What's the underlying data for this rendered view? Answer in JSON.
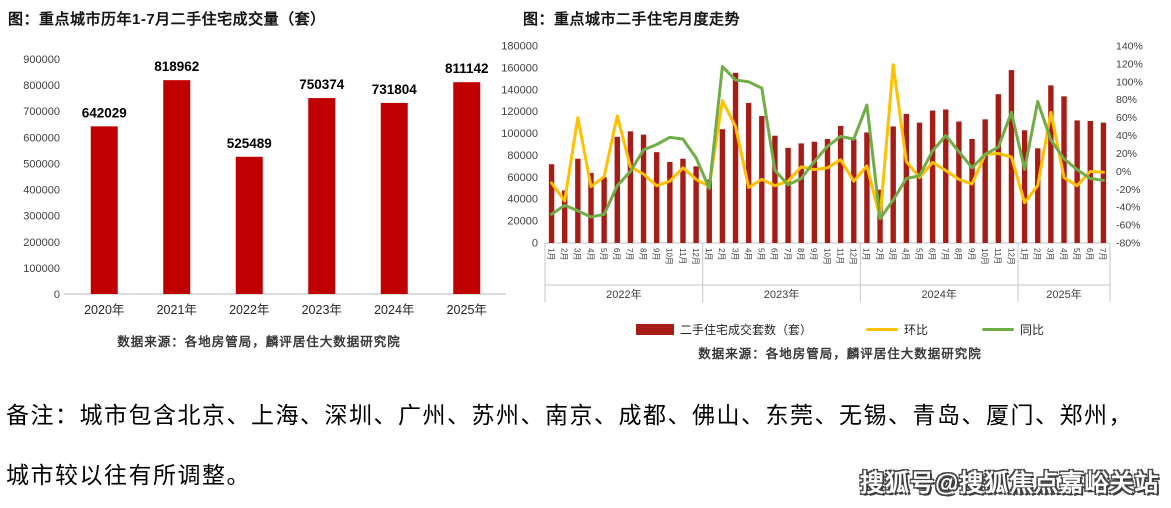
{
  "chart_data": [
    {
      "type": "bar",
      "title": "图：重点城市历年1-7月二手住宅成交量（套）",
      "source": "数据来源：各地房管局，麟评居住大数据研究院",
      "categories": [
        "2020年",
        "2021年",
        "2022年",
        "2023年",
        "2024年",
        "2025年"
      ],
      "values": [
        642029,
        818962,
        525489,
        750374,
        731804,
        811142
      ],
      "data_labels": [
        642029,
        818962,
        525489,
        750374,
        731804,
        811142
      ],
      "bar_color": "#c00000",
      "xlabel": "",
      "ylabel": "",
      "ylim": [
        0,
        900000
      ],
      "ytick_step": 100000,
      "grid": false,
      "legend_position": "none"
    },
    {
      "type": "bar+line-dual-axis",
      "title": "图：重点城市二手住宅月度走势",
      "source": "数据来源：各地房管局，麟评居住大数据研究院",
      "month_labels": [
        "1月",
        "2月",
        "3月",
        "4月",
        "5月",
        "6月",
        "7月",
        "8月",
        "9月",
        "10月",
        "11月",
        "12月",
        "1月",
        "2月",
        "3月",
        "4月",
        "5月",
        "6月",
        "7月",
        "8月",
        "9月",
        "10月",
        "11月",
        "12月",
        "1月",
        "2月",
        "3月",
        "4月",
        "5月",
        "6月",
        "7月",
        "8月",
        "9月",
        "10月",
        "11月",
        "12月",
        "1月",
        "2月",
        "3月",
        "4月",
        "5月",
        "6月",
        "7月"
      ],
      "year_groups": [
        {
          "label": "2022年",
          "count": 12
        },
        {
          "label": "2023年",
          "count": 12
        },
        {
          "label": "2024年",
          "count": 12
        },
        {
          "label": "2025年",
          "count": 7
        }
      ],
      "left_axis": {
        "min": 0,
        "max": 180000,
        "step": 20000
      },
      "right_axis": {
        "min": -80,
        "max": 140,
        "step": 20,
        "suffix": "%"
      },
      "grid": false,
      "legend_position": "bottom",
      "series": [
        {
          "name": "二手住宅成交套数（套）",
          "type": "bar",
          "axis": "left",
          "color": "#a61d17",
          "values": [
            72000,
            48000,
            77000,
            64000,
            60000,
            97000,
            102000,
            99000,
            83000,
            74000,
            77000,
            70000,
            58000,
            104000,
            155500,
            128000,
            116000,
            98000,
            87000,
            91000,
            92500,
            95000,
            107000,
            95000,
            101000,
            48700,
            106500,
            118000,
            110000,
            121000,
            122000,
            111000,
            95000,
            113000,
            136000,
            158000,
            103000,
            86500,
            144000,
            134000,
            112000,
            111500,
            110000
          ]
        },
        {
          "name": "环比",
          "type": "line",
          "axis": "right",
          "color": "#ffc000",
          "values": [
            -13,
            -33,
            60,
            -17,
            -6,
            62,
            5,
            -3,
            -16,
            -11,
            4,
            -9,
            -17,
            79,
            50,
            -18,
            -9,
            -16,
            -11,
            5,
            2,
            4,
            13,
            -11,
            6,
            -52,
            119,
            11,
            -7,
            10,
            1,
            -9,
            -14,
            19,
            20,
            16,
            -35,
            -16,
            66,
            -7,
            -16,
            0,
            -1
          ]
        },
        {
          "name": "同比",
          "type": "line",
          "axis": "right",
          "color": "#70ad47",
          "values": [
            -48,
            -38,
            -44,
            -51,
            -48,
            -16,
            0,
            24,
            30,
            38,
            36,
            15,
            -19,
            117,
            102,
            100,
            93,
            1,
            -15,
            -8,
            11,
            28,
            39,
            36,
            74,
            -53,
            -32,
            -8,
            -5,
            23,
            40,
            22,
            4,
            19,
            27,
            66,
            2,
            78,
            35,
            14,
            2,
            -8,
            -10
          ]
        }
      ]
    }
  ],
  "note": {
    "line1": "备注：城市包含北京、上海、深圳、广州、苏州、南京、成都、佛山、东莞、无锡、青岛、厦门、郑州，",
    "line2": "城市较以往有所调整。"
  },
  "watermark": {
    "text": "搜狐号@搜狐焦点嘉峪关站"
  }
}
